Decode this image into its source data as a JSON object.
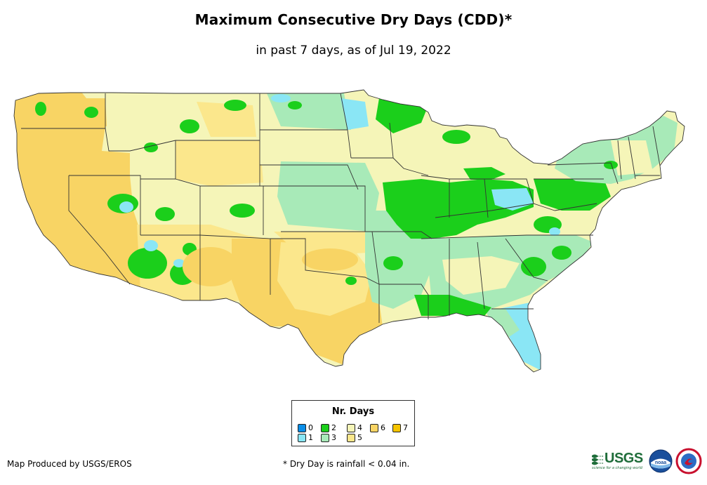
{
  "title": "Maximum Consecutive Dry Days (CDD)*",
  "subtitle": "in past 7 days, as of Jul 19, 2022",
  "legend": {
    "title": "Nr. Days",
    "items": [
      {
        "label": "0",
        "color": "#0a8ee8"
      },
      {
        "label": "1",
        "color": "#8ae6f5"
      },
      {
        "label": "2",
        "color": "#1bcf1b"
      },
      {
        "label": "3",
        "color": "#a8eab8"
      },
      {
        "label": "4",
        "color": "#f5f5b8"
      },
      {
        "label": "5",
        "color": "#fbe78c"
      },
      {
        "label": "6",
        "color": "#f8d464"
      },
      {
        "label": "7",
        "color": "#f5c400"
      }
    ]
  },
  "footer": {
    "produced_by": "Map Produced by USGS/EROS",
    "note": "* Dry Day is rainfall < 0.04 in."
  },
  "logos": {
    "usgs": "USGS",
    "usgs_tagline": "science for a changing world",
    "noaa": "noaa"
  }
}
